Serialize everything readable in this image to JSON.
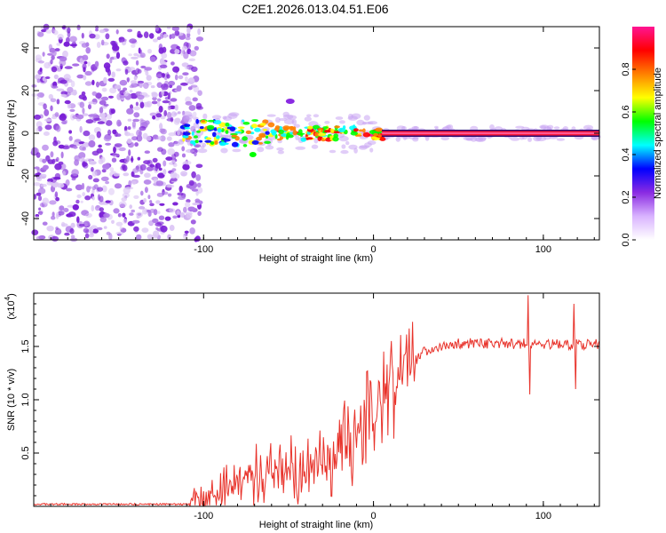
{
  "title": "C2E1.2026.013.04.51.E06",
  "chart_data": [
    {
      "type": "heatmap",
      "name": "spectrogram",
      "xlabel": "Height of straight line (km)",
      "ylabel": "Frequency (Hz)",
      "xlim": [
        -200,
        133
      ],
      "ylim": [
        -50,
        50
      ],
      "xticks": [
        -100,
        0,
        100
      ],
      "xtick_labels": [
        "-100",
        "0",
        "100"
      ],
      "yticks": [
        -40,
        -20,
        0,
        20,
        40
      ],
      "ytick_labels": [
        "-40",
        "-20",
        "0",
        "20",
        "40"
      ],
      "noise_region_x": [
        -200,
        -108
      ],
      "carrier_frequency": 0,
      "carrier_start_x": 5,
      "colorbar": {
        "label": "Normalized spectral amplitude",
        "range": [
          0,
          1
        ],
        "ticks": [
          0.0,
          0.2,
          0.4,
          0.6,
          0.8
        ],
        "tick_labels": [
          "0.0",
          "0.2",
          "0.4",
          "0.6",
          "0.8"
        ],
        "colors": [
          "#ffffff",
          "#d9b3ff",
          "#8a2be2",
          "#0000ff",
          "#00ffff",
          "#00ff00",
          "#ffff00",
          "#ff8000",
          "#ff0000",
          "#ff1493"
        ]
      }
    },
    {
      "type": "line",
      "name": "snr",
      "xlabel": "Height of straight line (km)",
      "ylabel": "SNR (10 * v/v)",
      "y_multiplier_label": "(x10",
      "y_multiplier_exp": "4",
      "y_multiplier_close": ")",
      "xlim": [
        -200,
        133
      ],
      "ylim": [
        0,
        2.0
      ],
      "xticks": [
        -100,
        0,
        100
      ],
      "xtick_labels": [
        "-100",
        "0",
        "100"
      ],
      "yticks": [
        0.5,
        1.0,
        1.5
      ],
      "ytick_labels": [
        "0.5",
        "1.0",
        "1.5"
      ],
      "color": "#e8322a",
      "trend": [
        {
          "x": -200,
          "y": 0.02
        },
        {
          "x": -108,
          "y": 0.02
        },
        {
          "x": -90,
          "y": 0.1
        },
        {
          "x": -80,
          "y": 0.25
        },
        {
          "x": -60,
          "y": 0.3
        },
        {
          "x": -40,
          "y": 0.35
        },
        {
          "x": -20,
          "y": 0.55
        },
        {
          "x": 0,
          "y": 0.85
        },
        {
          "x": 10,
          "y": 1.1
        },
        {
          "x": 20,
          "y": 1.3
        },
        {
          "x": 30,
          "y": 1.45
        },
        {
          "x": 50,
          "y": 1.53
        },
        {
          "x": 133,
          "y": 1.52
        }
      ],
      "spikes": [
        {
          "x": 91,
          "y": 1.98
        },
        {
          "x": 92,
          "y": 1.05
        },
        {
          "x": 118,
          "y": 1.9
        },
        {
          "x": 119,
          "y": 1.1
        }
      ]
    }
  ]
}
